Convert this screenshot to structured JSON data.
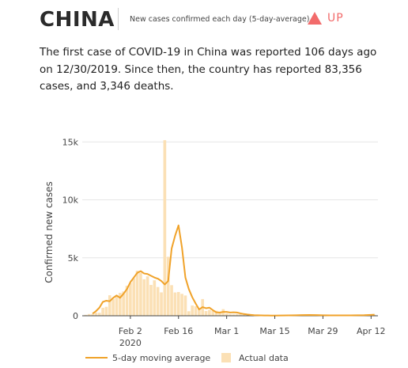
{
  "header": {
    "country": "CHINA",
    "subtitle": "New cases confirmed each day (5-day-average)",
    "trend_label": "UP",
    "trend_color": "#f26b6b"
  },
  "summary": "The first case of COVID-19 in China was reported 106 days ago on 12/30/2019. Since then, the country has reported 83,356 cases, and 3,346 deaths.",
  "colors": {
    "line": "#f0a229",
    "bar": "#fbe0b5",
    "grid": "#e6e6e6",
    "axis": "#444444"
  },
  "chart_data": {
    "type": "bar",
    "ylabel": "Confirmed new cases",
    "xlabel": "",
    "ylim": [
      0,
      15500
    ],
    "yticks": [
      0,
      5000,
      10000,
      15000
    ],
    "ytick_labels": [
      "0",
      "5k",
      "10k",
      "15k"
    ],
    "xticks": [
      {
        "date": "2020-02-02",
        "label": "Feb 2"
      },
      {
        "date": "2020-02-16",
        "label": "Feb 16"
      },
      {
        "date": "2020-03-01",
        "label": "Mar 1"
      },
      {
        "date": "2020-03-15",
        "label": "Mar 15"
      },
      {
        "date": "2020-03-29",
        "label": "Mar 29"
      },
      {
        "date": "2020-04-12",
        "label": "Apr 12"
      }
    ],
    "year_label": "2020",
    "xlim": [
      "2020-01-19",
      "2020-04-14"
    ],
    "grid": true,
    "legend_position": "bottom",
    "series": [
      {
        "name": "Actual data",
        "kind": "bar",
        "points": [
          [
            "2020-01-20",
            80
          ],
          [
            "2020-01-21",
            150
          ],
          [
            "2020-01-22",
            140
          ],
          [
            "2020-01-23",
            270
          ],
          [
            "2020-01-24",
            260
          ],
          [
            "2020-01-25",
            690
          ],
          [
            "2020-01-26",
            770
          ],
          [
            "2020-01-27",
            1770
          ],
          [
            "2020-01-28",
            1460
          ],
          [
            "2020-01-29",
            1740
          ],
          [
            "2020-01-30",
            1980
          ],
          [
            "2020-01-31",
            2100
          ],
          [
            "2020-02-01",
            2590
          ],
          [
            "2020-02-02",
            2830
          ],
          [
            "2020-02-03",
            3240
          ],
          [
            "2020-02-04",
            3890
          ],
          [
            "2020-02-05",
            3700
          ],
          [
            "2020-02-06",
            3150
          ],
          [
            "2020-02-07",
            3400
          ],
          [
            "2020-02-08",
            2660
          ],
          [
            "2020-02-09",
            3060
          ],
          [
            "2020-02-10",
            2480
          ],
          [
            "2020-02-11",
            2020
          ],
          [
            "2020-02-12",
            15150
          ],
          [
            "2020-02-13",
            5090
          ],
          [
            "2020-02-14",
            2640
          ],
          [
            "2020-02-15",
            2010
          ],
          [
            "2020-02-16",
            2050
          ],
          [
            "2020-02-17",
            1890
          ],
          [
            "2020-02-18",
            1750
          ],
          [
            "2020-02-19",
            390
          ],
          [
            "2020-02-20",
            890
          ],
          [
            "2020-02-21",
            820
          ],
          [
            "2020-02-22",
            650
          ],
          [
            "2020-02-23",
            1440
          ],
          [
            "2020-02-24",
            410
          ],
          [
            "2020-02-25",
            510
          ],
          [
            "2020-02-26",
            410
          ],
          [
            "2020-02-27",
            430
          ],
          [
            "2020-02-28",
            330
          ],
          [
            "2020-02-29",
            570
          ],
          [
            "2020-03-01",
            200
          ],
          [
            "2020-03-02",
            130
          ],
          [
            "2020-03-03",
            120
          ],
          [
            "2020-03-04",
            140
          ],
          [
            "2020-03-05",
            140
          ],
          [
            "2020-03-06",
            100
          ],
          [
            "2020-03-07",
            45
          ],
          [
            "2020-03-08",
            40
          ],
          [
            "2020-03-09",
            20
          ],
          [
            "2020-03-10",
            30
          ],
          [
            "2020-03-11",
            30
          ],
          [
            "2020-03-12",
            15
          ],
          [
            "2020-03-13",
            20
          ],
          [
            "2020-03-14",
            20
          ],
          [
            "2020-03-15",
            15
          ],
          [
            "2020-03-16",
            30
          ],
          [
            "2020-03-17",
            20
          ],
          [
            "2020-03-18",
            40
          ],
          [
            "2020-03-19",
            50
          ],
          [
            "2020-03-20",
            40
          ],
          [
            "2020-03-21",
            50
          ],
          [
            "2020-03-22",
            40
          ],
          [
            "2020-03-23",
            80
          ],
          [
            "2020-03-24",
            80
          ],
          [
            "2020-03-25",
            70
          ],
          [
            "2020-03-26",
            70
          ],
          [
            "2020-03-27",
            50
          ],
          [
            "2020-03-28",
            50
          ],
          [
            "2020-03-29",
            40
          ],
          [
            "2020-03-30",
            30
          ],
          [
            "2020-03-31",
            40
          ],
          [
            "2020-04-01",
            40
          ],
          [
            "2020-04-02",
            30
          ],
          [
            "2020-04-03",
            20
          ],
          [
            "2020-04-04",
            30
          ],
          [
            "2020-04-05",
            40
          ],
          [
            "2020-04-06",
            30
          ],
          [
            "2020-04-07",
            60
          ],
          [
            "2020-04-08",
            60
          ],
          [
            "2020-04-09",
            40
          ],
          [
            "2020-04-10",
            50
          ],
          [
            "2020-04-11",
            100
          ],
          [
            "2020-04-12",
            110
          ],
          [
            "2020-04-13",
            90
          ]
        ]
      },
      {
        "name": "5-day moving average",
        "kind": "line",
        "points": [
          [
            "2020-01-22",
            180
          ],
          [
            "2020-01-23",
            400
          ],
          [
            "2020-01-24",
            700
          ],
          [
            "2020-01-25",
            1200
          ],
          [
            "2020-01-26",
            1300
          ],
          [
            "2020-01-27",
            1250
          ],
          [
            "2020-01-28",
            1550
          ],
          [
            "2020-01-29",
            1750
          ],
          [
            "2020-01-30",
            1550
          ],
          [
            "2020-01-31",
            1900
          ],
          [
            "2020-02-01",
            2300
          ],
          [
            "2020-02-02",
            2900
          ],
          [
            "2020-02-03",
            3300
          ],
          [
            "2020-02-04",
            3700
          ],
          [
            "2020-02-05",
            3850
          ],
          [
            "2020-02-06",
            3650
          ],
          [
            "2020-02-07",
            3600
          ],
          [
            "2020-02-08",
            3450
          ],
          [
            "2020-02-09",
            3300
          ],
          [
            "2020-02-10",
            3200
          ],
          [
            "2020-02-11",
            3000
          ],
          [
            "2020-02-12",
            2700
          ],
          [
            "2020-02-13",
            3000
          ],
          [
            "2020-02-14",
            5800
          ],
          [
            "2020-02-15",
            6900
          ],
          [
            "2020-02-16",
            7800
          ],
          [
            "2020-02-17",
            5900
          ],
          [
            "2020-02-18",
            3300
          ],
          [
            "2020-02-19",
            2300
          ],
          [
            "2020-02-20",
            1600
          ],
          [
            "2020-02-21",
            1050
          ],
          [
            "2020-02-22",
            550
          ],
          [
            "2020-02-23",
            750
          ],
          [
            "2020-02-24",
            650
          ],
          [
            "2020-02-25",
            700
          ],
          [
            "2020-02-26",
            480
          ],
          [
            "2020-02-27",
            300
          ],
          [
            "2020-02-28",
            280
          ],
          [
            "2020-02-29",
            330
          ],
          [
            "2020-03-01",
            330
          ],
          [
            "2020-03-02",
            280
          ],
          [
            "2020-03-03",
            300
          ],
          [
            "2020-03-04",
            280
          ],
          [
            "2020-03-05",
            210
          ],
          [
            "2020-03-06",
            150
          ],
          [
            "2020-03-07",
            110
          ],
          [
            "2020-03-08",
            80
          ],
          [
            "2020-03-09",
            55
          ],
          [
            "2020-03-10",
            40
          ],
          [
            "2020-03-11",
            30
          ],
          [
            "2020-03-12",
            25
          ],
          [
            "2020-03-13",
            22
          ],
          [
            "2020-03-14",
            20
          ],
          [
            "2020-03-15",
            20
          ],
          [
            "2020-03-17",
            25
          ],
          [
            "2020-03-19",
            35
          ],
          [
            "2020-03-21",
            45
          ],
          [
            "2020-03-23",
            60
          ],
          [
            "2020-03-25",
            70
          ],
          [
            "2020-03-27",
            60
          ],
          [
            "2020-03-29",
            45
          ],
          [
            "2020-03-31",
            38
          ],
          [
            "2020-04-02",
            32
          ],
          [
            "2020-04-04",
            30
          ],
          [
            "2020-04-06",
            35
          ],
          [
            "2020-04-08",
            45
          ],
          [
            "2020-04-10",
            55
          ],
          [
            "2020-04-12",
            80
          ],
          [
            "2020-04-13",
            90
          ]
        ]
      }
    ]
  }
}
